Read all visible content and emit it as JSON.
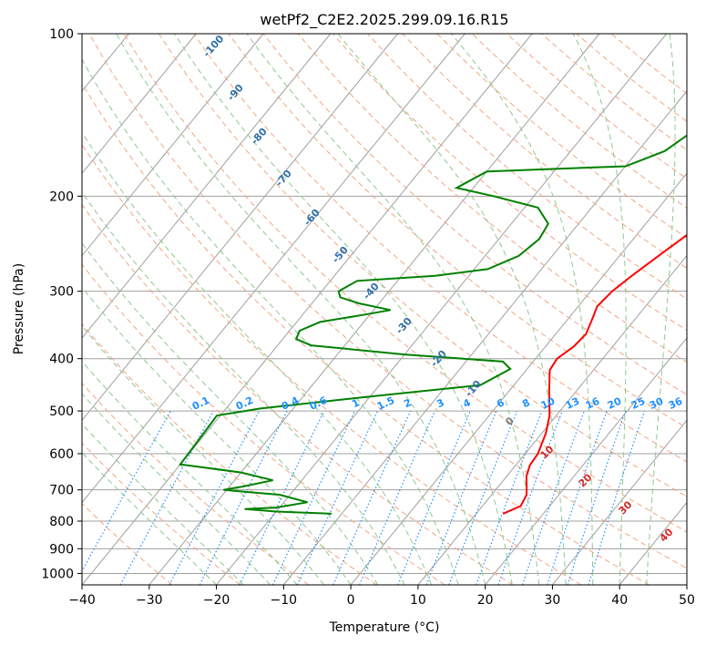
{
  "chart_data": {
    "type": "line",
    "title": "wetPf2_C2E2.2025.299.09.16.R15",
    "xlabel": "Temperature (°C)",
    "ylabel": "Pressure (hPa)",
    "xlim": [
      -40,
      50
    ],
    "ylim": [
      1050,
      100
    ],
    "y_scale": "log",
    "x_ticks": [
      -40,
      -30,
      -20,
      -10,
      0,
      10,
      20,
      30,
      40,
      50
    ],
    "y_ticks": [
      1000,
      900,
      800,
      700,
      600,
      500,
      400,
      300,
      200,
      100
    ],
    "grid": true,
    "temperature_profile": {
      "color": "#ff0000",
      "points": [
        [
          14.0,
          775
        ],
        [
          15.7,
          750
        ],
        [
          15.2,
          715
        ],
        [
          14.2,
          690
        ],
        [
          12.9,
          660
        ],
        [
          12.1,
          630
        ],
        [
          11.9,
          600
        ],
        [
          10.6,
          550
        ],
        [
          9.0,
          510
        ],
        [
          6.0,
          460
        ],
        [
          3.5,
          420
        ],
        [
          3.2,
          400
        ],
        [
          4.2,
          380
        ],
        [
          4.5,
          360
        ],
        [
          3.5,
          335
        ],
        [
          2.8,
          320
        ],
        [
          3.2,
          300
        ],
        [
          4.3,
          280
        ],
        [
          6.0,
          255
        ],
        [
          8.0,
          230
        ],
        [
          9.5,
          210
        ],
        [
          11.0,
          190
        ],
        [
          11.5,
          175
        ],
        [
          11.8,
          160
        ],
        [
          11.5,
          150
        ],
        [
          11.5,
          140
        ],
        [
          11.8,
          128
        ],
        [
          12.3,
          120
        ],
        [
          13.5,
          113
        ],
        [
          14.8,
          108
        ],
        [
          16.1,
          103
        ],
        [
          17.1,
          100
        ]
      ]
    },
    "dewpoint_profile": {
      "color": "#008000",
      "points": [
        [
          -11.5,
          775
        ],
        [
          -20.0,
          768
        ],
        [
          -25.0,
          760
        ],
        [
          -20.5,
          755
        ],
        [
          -16.5,
          738
        ],
        [
          -21.5,
          715
        ],
        [
          -30.5,
          700
        ],
        [
          -28.0,
          690
        ],
        [
          -24.3,
          672
        ],
        [
          -30.0,
          650
        ],
        [
          -40.0,
          628
        ],
        [
          -40.5,
          510
        ],
        [
          -35.0,
          495
        ],
        [
          -20.0,
          470
        ],
        [
          -5.0,
          448
        ],
        [
          -2.5,
          418
        ],
        [
          -4.5,
          405
        ],
        [
          -20.0,
          393
        ],
        [
          -35.0,
          378
        ],
        [
          -38.0,
          368
        ],
        [
          -38.5,
          355
        ],
        [
          -36.5,
          342
        ],
        [
          -31.0,
          332
        ],
        [
          -27.5,
          325
        ],
        [
          -33.0,
          316
        ],
        [
          -36.5,
          308
        ],
        [
          -37.5,
          300
        ],
        [
          -36.0,
          287
        ],
        [
          -25.0,
          281
        ],
        [
          -18.0,
          273
        ],
        [
          -15.0,
          258
        ],
        [
          -14.0,
          240
        ],
        [
          -14.5,
          225
        ],
        [
          -18.0,
          210
        ],
        [
          -26.0,
          200
        ],
        [
          -32.5,
          193
        ],
        [
          -30.0,
          180
        ],
        [
          -10.0,
          176
        ],
        [
          -6.0,
          165
        ],
        [
          -4.0,
          150
        ],
        [
          -1.5,
          130
        ],
        [
          1.0,
          115
        ],
        [
          4.0,
          100
        ]
      ]
    },
    "dry_adiabats_label_values": [
      "-100",
      "-90",
      "-80",
      "-70",
      "-60",
      "-50",
      "-40",
      "-30",
      "-20",
      "-10"
    ],
    "moist_adiabats_label_values": [
      "0",
      "10",
      "20",
      "30",
      "40"
    ],
    "mixing_ratio_label_values": [
      "0.1",
      "0.2",
      "0.4",
      "0.6",
      "1",
      "1.5",
      "2",
      "3",
      "4",
      "6",
      "8",
      "10",
      "13",
      "16",
      "20",
      "25",
      "30",
      "36"
    ],
    "colors": {
      "isotherm": "#a0a0a0",
      "dry_adiabat": "#f4a582",
      "moist_adiabat": "#8fc88f",
      "mixing_ratio": "#1e90ff",
      "dry_label": "#2f6fa8",
      "moist_label": "#d62728"
    }
  }
}
